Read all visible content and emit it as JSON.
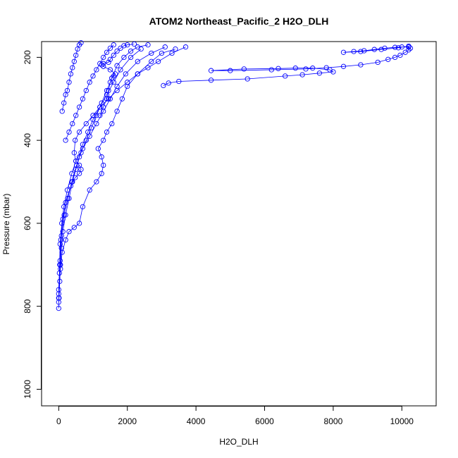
{
  "chart_data": {
    "type": "scatter",
    "title": "ATOM2 Northeast_Pacific_2 H2O_DLH",
    "xlabel": "H2O_DLH",
    "ylabel": "Pressure (mbar)",
    "xlim": [
      -500,
      11000
    ],
    "ylim": [
      1040,
      162
    ],
    "y_reversed": true,
    "x_ticks": [
      0,
      2000,
      4000,
      6000,
      8000,
      10000
    ],
    "y_ticks": [
      200,
      400,
      600,
      800,
      1000
    ],
    "x_tick_labels": [
      "0",
      "2000",
      "4000",
      "6000",
      "8000",
      "10000"
    ],
    "y_tick_labels": [
      "200",
      "400",
      "600",
      "800",
      "1000"
    ],
    "marker": "open-circle",
    "connected": true,
    "color": "#0000ff",
    "grid": false,
    "series": [
      {
        "values": [
          [
            0,
            805
          ],
          [
            10,
            780
          ],
          [
            30,
            740
          ],
          [
            50,
            700
          ],
          [
            80,
            660
          ],
          [
            120,
            620
          ],
          [
            200,
            580
          ],
          [
            300,
            540
          ],
          [
            400,
            500
          ],
          [
            500,
            470
          ],
          [
            600,
            440
          ],
          [
            700,
            410
          ],
          [
            850,
            380
          ],
          [
            1000,
            350
          ],
          [
            1200,
            320
          ],
          [
            1400,
            290
          ],
          [
            1600,
            260
          ],
          [
            1800,
            230
          ],
          [
            2100,
            200
          ],
          [
            2400,
            180
          ]
        ]
      },
      {
        "values": [
          [
            0,
            790
          ],
          [
            20,
            720
          ],
          [
            40,
            650
          ],
          [
            90,
            600
          ],
          [
            150,
            560
          ],
          [
            250,
            520
          ],
          [
            380,
            480
          ],
          [
            500,
            450
          ],
          [
            700,
            420
          ],
          [
            900,
            390
          ],
          [
            1100,
            360
          ],
          [
            1300,
            330
          ],
          [
            1500,
            300
          ],
          [
            1700,
            270
          ],
          [
            1950,
            240
          ],
          [
            2300,
            210
          ],
          [
            2700,
            190
          ],
          [
            3100,
            175
          ]
        ]
      },
      {
        "values": [
          [
            0,
            780
          ],
          [
            30,
            700
          ],
          [
            60,
            640
          ],
          [
            120,
            590
          ],
          [
            200,
            550
          ],
          [
            350,
            510
          ],
          [
            480,
            490
          ],
          [
            600,
            480
          ],
          [
            650,
            470
          ],
          [
            600,
            460
          ],
          [
            500,
            450
          ],
          [
            450,
            430
          ],
          [
            480,
            400
          ],
          [
            600,
            380
          ],
          [
            800,
            360
          ],
          [
            1000,
            340
          ],
          [
            1200,
            320
          ],
          [
            1450,
            300
          ],
          [
            1700,
            280
          ],
          [
            2000,
            260
          ],
          [
            2300,
            240
          ],
          [
            2600,
            225
          ],
          [
            2900,
            210
          ],
          [
            3300,
            190
          ],
          [
            3700,
            175
          ]
        ]
      },
      {
        "values": [
          [
            0,
            770
          ],
          [
            50,
            710
          ],
          [
            100,
            670
          ],
          [
            200,
            640
          ],
          [
            300,
            620
          ],
          [
            450,
            610
          ],
          [
            600,
            600
          ],
          [
            700,
            560
          ],
          [
            900,
            520
          ],
          [
            1100,
            500
          ],
          [
            1250,
            480
          ],
          [
            1300,
            460
          ],
          [
            1250,
            440
          ],
          [
            1150,
            420
          ],
          [
            1300,
            400
          ],
          [
            1400,
            380
          ],
          [
            1550,
            360
          ],
          [
            1700,
            330
          ],
          [
            1850,
            300
          ],
          [
            2000,
            270
          ],
          [
            2300,
            240
          ],
          [
            2700,
            210
          ],
          [
            3000,
            190
          ],
          [
            3400,
            180
          ]
        ]
      },
      {
        "values": [
          [
            0,
            760
          ],
          [
            40,
            690
          ],
          [
            80,
            630
          ],
          [
            160,
            580
          ],
          [
            260,
            540
          ],
          [
            380,
            500
          ],
          [
            520,
            460
          ],
          [
            650,
            430
          ],
          [
            800,
            400
          ],
          [
            950,
            370
          ],
          [
            1100,
            340
          ],
          [
            1250,
            310
          ],
          [
            1400,
            280
          ],
          [
            1550,
            250
          ],
          [
            1700,
            220
          ],
          [
            1900,
            200
          ],
          [
            2100,
            185
          ],
          [
            2300,
            175
          ],
          [
            2600,
            170
          ]
        ]
      },
      {
        "values": [
          [
            3050,
            268
          ],
          [
            3200,
            262
          ],
          [
            3500,
            258
          ],
          [
            4440,
            255
          ],
          [
            5500,
            252
          ],
          [
            6600,
            245
          ],
          [
            7100,
            242
          ],
          [
            7600,
            238
          ],
          [
            8000,
            235
          ],
          [
            7900,
            230
          ],
          [
            7400,
            226
          ],
          [
            6900,
            226
          ],
          [
            6400,
            227
          ],
          [
            5400,
            228
          ],
          [
            4440,
            232
          ],
          [
            5000,
            232
          ],
          [
            6200,
            230
          ],
          [
            7200,
            228
          ],
          [
            7800,
            225
          ],
          [
            8300,
            222
          ],
          [
            8800,
            218
          ],
          [
            9300,
            212
          ],
          [
            9600,
            205
          ],
          [
            9800,
            200
          ],
          [
            9950,
            195
          ],
          [
            10100,
            188
          ],
          [
            10200,
            182
          ],
          [
            10250,
            178
          ],
          [
            10200,
            175
          ],
          [
            10000,
            175
          ],
          [
            9800,
            176
          ],
          [
            9500,
            178
          ],
          [
            9200,
            181
          ],
          [
            8900,
            184
          ],
          [
            8600,
            186
          ],
          [
            8300,
            188
          ],
          [
            8800,
            186
          ],
          [
            9400,
            181
          ],
          [
            9900,
            177
          ],
          [
            10200,
            173
          ]
        ]
      },
      {
        "values": [
          [
            1200,
            340
          ],
          [
            1300,
            320
          ],
          [
            1400,
            300
          ],
          [
            1450,
            280
          ],
          [
            1500,
            260
          ],
          [
            1550,
            250
          ],
          [
            1600,
            245
          ],
          [
            1650,
            240
          ],
          [
            1500,
            230
          ],
          [
            1300,
            222
          ],
          [
            1250,
            218
          ],
          [
            1300,
            215
          ],
          [
            1450,
            212
          ],
          [
            1500,
            205
          ],
          [
            1600,
            195
          ],
          [
            1700,
            185
          ],
          [
            1800,
            178
          ],
          [
            1900,
            172
          ],
          [
            2000,
            170
          ],
          [
            2200,
            168
          ]
        ]
      },
      {
        "values": [
          [
            100,
            330
          ],
          [
            150,
            310
          ],
          [
            200,
            290
          ],
          [
            250,
            280
          ],
          [
            300,
            260
          ],
          [
            350,
            240
          ],
          [
            400,
            225
          ],
          [
            450,
            210
          ],
          [
            500,
            195
          ],
          [
            550,
            180
          ],
          [
            600,
            170
          ],
          [
            650,
            165
          ]
        ]
      },
      {
        "values": [
          [
            200,
            400
          ],
          [
            300,
            380
          ],
          [
            400,
            360
          ],
          [
            500,
            340
          ],
          [
            600,
            320
          ],
          [
            700,
            300
          ],
          [
            800,
            280
          ],
          [
            900,
            260
          ],
          [
            1000,
            245
          ],
          [
            1100,
            230
          ],
          [
            1200,
            215
          ],
          [
            1300,
            200
          ],
          [
            1400,
            188
          ],
          [
            1500,
            178
          ],
          [
            1600,
            170
          ]
        ]
      }
    ]
  }
}
